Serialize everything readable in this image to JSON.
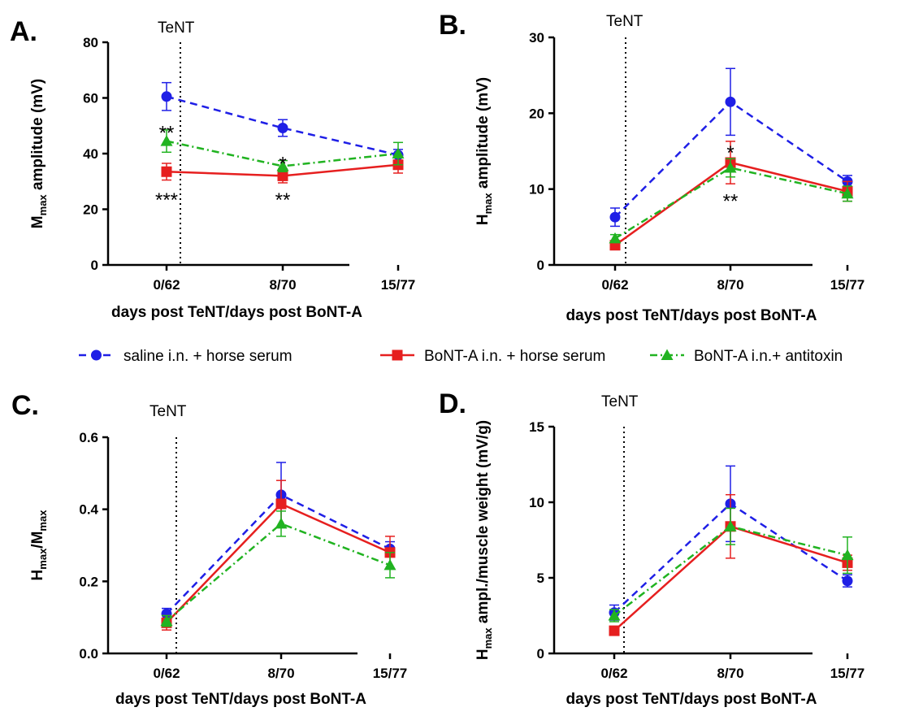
{
  "figure": {
    "tent_label": "TeNT",
    "legend": [
      {
        "label": "saline i.n. + horse serum",
        "color": "#1f1fe6",
        "marker": "circle",
        "dash": "dashed"
      },
      {
        "label": "BoNT-A i.n. + horse serum",
        "color": "#e61f1f",
        "marker": "square",
        "dash": "solid"
      },
      {
        "label": "BoNT-A i.n.+ antitoxin",
        "color": "#21b321",
        "marker": "triangle",
        "dash": "dashdot"
      }
    ]
  },
  "chart_data": [
    {
      "panel": "A.",
      "type": "line",
      "categories": [
        "0/62",
        "8/70",
        "15/77"
      ],
      "xlabel": "days post TeNT/days post BoNT-A",
      "ylabel_main": "M",
      "ylabel_sub": "max",
      "ylabel_rest": " amplitude (mV)",
      "ylim": [
        0,
        80
      ],
      "yticks": [
        "0",
        "20",
        "40",
        "60",
        "80"
      ],
      "series": [
        {
          "name": "saline i.n. + horse serum",
          "values": [
            60.5,
            49.2,
            39.5
          ],
          "errors": [
            5,
            3,
            2
          ]
        },
        {
          "name": "BoNT-A i.n. + horse serum",
          "values": [
            33.5,
            32.0,
            36.0
          ],
          "errors": [
            3,
            2.5,
            3
          ]
        },
        {
          "name": "BoNT-A i.n.+ antitoxin",
          "values": [
            44.5,
            35.5,
            40.0
          ],
          "errors": [
            4,
            2,
            4
          ]
        }
      ],
      "annotations": [
        {
          "text": "**",
          "x": 0,
          "y": 48
        },
        {
          "text": "***",
          "x": 0,
          "y": 24
        },
        {
          "text": "*",
          "x": 1,
          "y": 37
        },
        {
          "text": "**",
          "x": 1,
          "y": 24
        }
      ]
    },
    {
      "panel": "B.",
      "type": "line",
      "categories": [
        "0/62",
        "8/70",
        "15/77"
      ],
      "xlabel": "days post TeNT/days post BoNT-A",
      "ylabel_main": "H",
      "ylabel_sub": "max",
      "ylabel_rest": " amplitude (mV)",
      "ylim": [
        0,
        30
      ],
      "yticks": [
        "0",
        "10",
        "20",
        "30"
      ],
      "series": [
        {
          "name": "saline i.n. + horse serum",
          "values": [
            6.3,
            21.5,
            11.0
          ],
          "errors": [
            1.2,
            4.4,
            0.8
          ]
        },
        {
          "name": "BoNT-A i.n. + horse serum",
          "values": [
            2.6,
            13.5,
            9.7
          ],
          "errors": [
            0.3,
            2.8,
            1.3
          ]
        },
        {
          "name": "BoNT-A i.n.+ antitoxin",
          "values": [
            3.5,
            12.8,
            9.4
          ],
          "errors": [
            0.5,
            1.2,
            1.0
          ]
        }
      ],
      "annotations": [
        {
          "text": "*",
          "x": 1,
          "y": 15.0
        },
        {
          "text": "**",
          "x": 1,
          "y": 8.6
        }
      ]
    },
    {
      "panel": "C.",
      "type": "line",
      "categories": [
        "0/62",
        "8/70",
        "15/77"
      ],
      "xlabel": "days post TeNT/days post BoNT-A",
      "ylabel_main": "H",
      "ylabel_sub": "max",
      "ylabel_rest": "/M",
      "ylabel_sub2": "max",
      "ylim": [
        0,
        0.6
      ],
      "yticks": [
        "0.0",
        "0.2",
        "0.4",
        "0.6"
      ],
      "series": [
        {
          "name": "saline i.n. + horse serum",
          "values": [
            0.11,
            0.44,
            0.29
          ],
          "errors": [
            0.015,
            0.09,
            0.02
          ]
        },
        {
          "name": "BoNT-A i.n. + horse serum",
          "values": [
            0.085,
            0.415,
            0.28
          ],
          "errors": [
            0.02,
            0.065,
            0.045
          ]
        },
        {
          "name": "BoNT-A i.n.+ antitoxin",
          "values": [
            0.09,
            0.36,
            0.245
          ],
          "errors": [
            0.015,
            0.035,
            0.035
          ]
        }
      ],
      "annotations": []
    },
    {
      "panel": "D.",
      "type": "line",
      "categories": [
        "0/62",
        "8/70",
        "15/77"
      ],
      "xlabel": "days post TeNT/days post BoNT-A",
      "ylabel_main": "H",
      "ylabel_sub": "max",
      "ylabel_rest": " ampl./muscle weight (mV/g)",
      "ylim": [
        0,
        15
      ],
      "yticks": [
        "0",
        "5",
        "10",
        "15"
      ],
      "series": [
        {
          "name": "saline i.n. + horse serum",
          "values": [
            2.7,
            9.9,
            4.8
          ],
          "errors": [
            0.5,
            2.5,
            0.4
          ]
        },
        {
          "name": "BoNT-A i.n. + horse serum",
          "values": [
            1.5,
            8.4,
            6.0
          ],
          "errors": [
            0.2,
            2.1,
            0.5
          ]
        },
        {
          "name": "BoNT-A i.n.+ antitoxin",
          "values": [
            2.5,
            8.4,
            6.5
          ],
          "errors": [
            0.4,
            1.2,
            1.2
          ]
        }
      ],
      "annotations": []
    }
  ]
}
